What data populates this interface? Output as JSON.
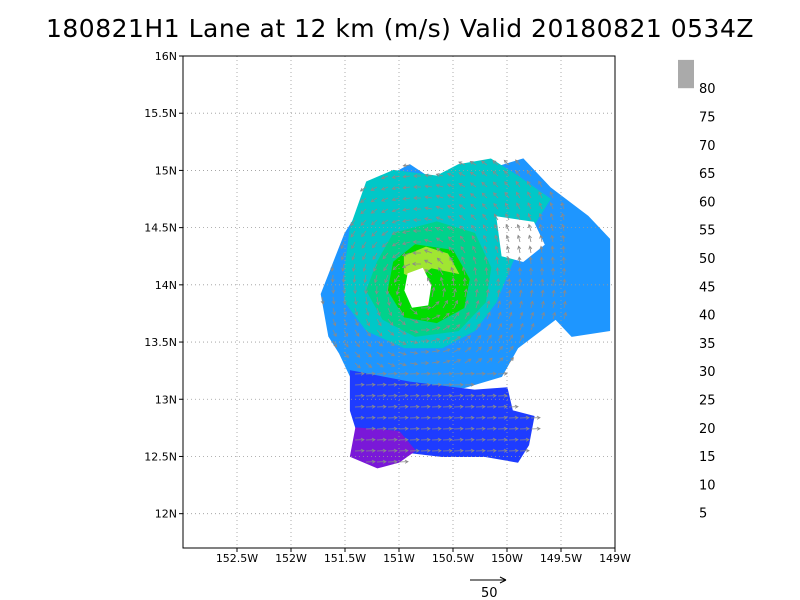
{
  "title": "180821H1 Lane at 12 km (m/s) Valid 20180821 0534Z",
  "map": {
    "lon_range": [
      -153.0,
      -149.0
    ],
    "lat_range": [
      11.7,
      16.0
    ],
    "lon_ticks": [
      {
        "value": -152.5,
        "label": "152.5W"
      },
      {
        "value": -152.0,
        "label": "152W"
      },
      {
        "value": -151.5,
        "label": "151.5W"
      },
      {
        "value": -151.0,
        "label": "151W"
      },
      {
        "value": -150.5,
        "label": "150.5W"
      },
      {
        "value": -150.0,
        "label": "150W"
      },
      {
        "value": -149.5,
        "label": "149.5W"
      },
      {
        "value": -149.0,
        "label": "149W"
      }
    ],
    "lat_ticks": [
      {
        "value": 12.0,
        "label": "12N"
      },
      {
        "value": 12.5,
        "label": "12.5N"
      },
      {
        "value": 13.0,
        "label": "13N"
      },
      {
        "value": 13.5,
        "label": "13.5N"
      },
      {
        "value": 14.0,
        "label": "14N"
      },
      {
        "value": 14.5,
        "label": "14.5N"
      },
      {
        "value": 15.0,
        "label": "15N"
      },
      {
        "value": 15.5,
        "label": "15.5N"
      },
      {
        "value": 16.0,
        "label": "16N"
      }
    ],
    "grid": "dotted"
  },
  "colorbar": {
    "levels": [
      {
        "label": "5",
        "color": "#a000d8"
      },
      {
        "label": "10",
        "color": "#7a18d8"
      },
      {
        "label": "15",
        "color": "#1e3cff"
      },
      {
        "label": "20",
        "color": "#1e96ff"
      },
      {
        "label": "25",
        "color": "#00c8c8"
      },
      {
        "label": "30",
        "color": "#00d28c"
      },
      {
        "label": "35",
        "color": "#00dc00"
      },
      {
        "label": "40",
        "color": "#a0e632"
      },
      {
        "label": "45",
        "color": "#e6dc32"
      },
      {
        "label": "50",
        "color": "#e6af2d"
      },
      {
        "label": "55",
        "color": "#f08228"
      },
      {
        "label": "60",
        "color": "#fa3c3c"
      },
      {
        "label": "65",
        "color": "#f00082"
      },
      {
        "label": "70",
        "color": "#a000c8"
      },
      {
        "label": "75",
        "color": "#00c8c8"
      },
      {
        "label": "80",
        "color": "#a0e632"
      }
    ],
    "top_color": "#aaaaaa"
  },
  "vector_scale": {
    "label": "50"
  },
  "chart_data": {
    "type": "heatmap",
    "title": "180821H1 Lane at 12 km (m/s) Valid 20180821 0534Z",
    "xlabel": "",
    "ylabel": "",
    "xlim": [
      -153.0,
      -149.0
    ],
    "ylim": [
      11.7,
      16.0
    ],
    "storm_center": [
      -150.8,
      13.9
    ],
    "regions": [
      {
        "range": "20-25 m/s",
        "color": "#1e96ff",
        "polygon": [
          [
            -151.72,
            13.92
          ],
          [
            -151.5,
            14.45
          ],
          [
            -151.2,
            14.9
          ],
          [
            -150.9,
            15.05
          ],
          [
            -150.5,
            14.8
          ],
          [
            -150.2,
            15.0
          ],
          [
            -149.85,
            15.1
          ],
          [
            -149.6,
            14.85
          ],
          [
            -149.25,
            14.6
          ],
          [
            -149.05,
            14.4
          ],
          [
            -149.05,
            13.6
          ],
          [
            -149.4,
            13.55
          ],
          [
            -149.55,
            13.7
          ],
          [
            -149.9,
            13.45
          ],
          [
            -150.05,
            13.2
          ],
          [
            -150.4,
            13.1
          ],
          [
            -150.9,
            13.12
          ],
          [
            -151.45,
            13.2
          ],
          [
            -151.55,
            13.4
          ],
          [
            -151.65,
            13.55
          ]
        ]
      },
      {
        "range": "25-30 m/s",
        "color": "#00c8c8",
        "polygon": [
          [
            -151.5,
            14.15
          ],
          [
            -151.45,
            14.5
          ],
          [
            -151.3,
            14.9
          ],
          [
            -151.05,
            15.0
          ],
          [
            -150.65,
            14.95
          ],
          [
            -150.45,
            15.05
          ],
          [
            -150.15,
            15.1
          ],
          [
            -149.9,
            14.95
          ],
          [
            -149.6,
            14.75
          ],
          [
            -149.8,
            14.45
          ],
          [
            -149.95,
            14.2
          ],
          [
            -150.1,
            13.85
          ],
          [
            -150.3,
            13.6
          ],
          [
            -150.6,
            13.45
          ],
          [
            -150.95,
            13.45
          ],
          [
            -151.3,
            13.6
          ],
          [
            -151.5,
            13.85
          ]
        ]
      },
      {
        "range": "30-35 m/s",
        "color": "#00d28c",
        "polygon": [
          [
            -151.2,
            14.2
          ],
          [
            -151.05,
            14.45
          ],
          [
            -150.65,
            14.55
          ],
          [
            -150.3,
            14.45
          ],
          [
            -150.15,
            14.15
          ],
          [
            -150.2,
            13.85
          ],
          [
            -150.45,
            13.6
          ],
          [
            -150.85,
            13.55
          ],
          [
            -151.15,
            13.7
          ],
          [
            -151.3,
            13.95
          ]
        ]
      },
      {
        "range": "35-40 m/s",
        "color": "#00dc00",
        "polygon": [
          [
            -151.05,
            14.2
          ],
          [
            -150.85,
            14.35
          ],
          [
            -150.5,
            14.3
          ],
          [
            -150.35,
            14.05
          ],
          [
            -150.4,
            13.8
          ],
          [
            -150.65,
            13.67
          ],
          [
            -150.95,
            13.72
          ],
          [
            -151.1,
            13.95
          ]
        ]
      },
      {
        "range": "40-45 m/s",
        "color": "#a0e632",
        "polygon": [
          [
            -150.95,
            14.25
          ],
          [
            -150.75,
            14.33
          ],
          [
            -150.55,
            14.27
          ],
          [
            -150.45,
            14.1
          ],
          [
            -150.7,
            14.15
          ],
          [
            -150.85,
            14.05
          ],
          [
            -150.95,
            14.1
          ]
        ]
      },
      {
        "range": "15-20 m/s",
        "color": "#1e3cff",
        "polygon": [
          [
            -151.45,
            13.25
          ],
          [
            -150.9,
            13.15
          ],
          [
            -150.3,
            13.08
          ],
          [
            -150.0,
            13.1
          ],
          [
            -149.95,
            12.9
          ],
          [
            -149.75,
            12.85
          ],
          [
            -149.8,
            12.6
          ],
          [
            -149.9,
            12.45
          ],
          [
            -150.2,
            12.5
          ],
          [
            -150.6,
            12.5
          ],
          [
            -151.05,
            12.55
          ],
          [
            -151.35,
            12.6
          ],
          [
            -151.45,
            12.9
          ]
        ]
      },
      {
        "range": "5-10 m/s",
        "color": "#7a18d8",
        "polygon": [
          [
            -151.4,
            12.75
          ],
          [
            -151.0,
            12.72
          ],
          [
            -150.85,
            12.55
          ],
          [
            -151.0,
            12.45
          ],
          [
            -151.2,
            12.4
          ],
          [
            -151.45,
            12.5
          ]
        ]
      }
    ],
    "eye": [
      [
        -150.92,
        14.1
      ],
      [
        -150.78,
        14.15
      ],
      [
        -150.7,
        14.0
      ],
      [
        -150.73,
        13.82
      ],
      [
        -150.88,
        13.8
      ],
      [
        -150.95,
        13.95
      ]
    ],
    "gaps": [
      [
        [
          -150.1,
          14.6
        ],
        [
          -149.75,
          14.55
        ],
        [
          -149.65,
          14.35
        ],
        [
          -149.85,
          14.2
        ],
        [
          -150.05,
          14.25
        ]
      ]
    ],
    "vectors": "counter-clockwise cyclonic circulation around storm_center, westerly flow south of 13.2N"
  }
}
